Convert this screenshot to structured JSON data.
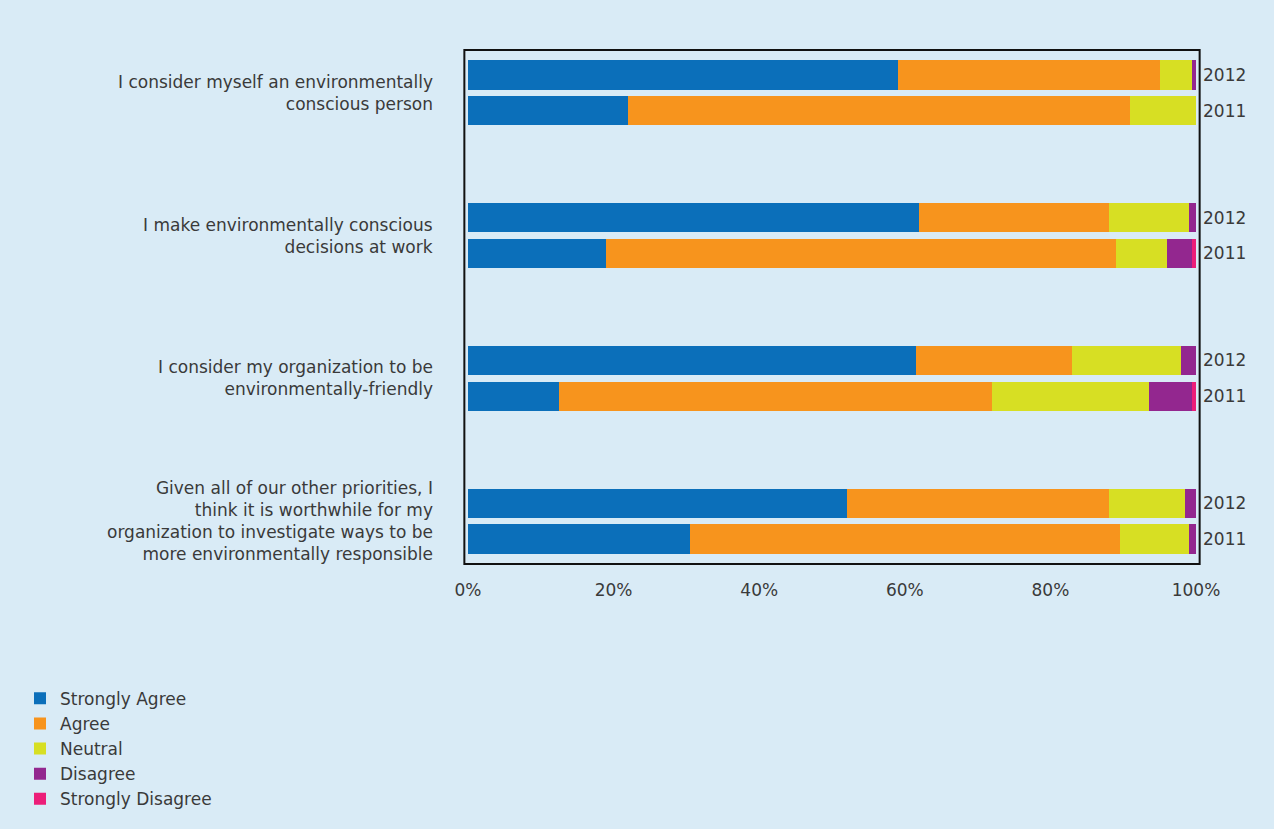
{
  "chart_data": {
    "type": "bar",
    "orientation": "horizontal",
    "stacked": true,
    "legend": "bottom left",
    "grid": false,
    "category_groups": [
      "I consider myself an environmentally conscious person",
      "I make environmentally conscious decisions at work",
      "I consider my organization to be environmentally-friendly",
      "Given all of our other priorities, I think it is worthwhile for my organization to investigate ways to be more environmentally responsible"
    ],
    "categories": [
      "2012",
      "2011",
      "2012",
      "2011",
      "2012",
      "2011",
      "2012",
      "2011"
    ],
    "xlim": [
      0,
      100
    ],
    "xticks": [
      {
        "value": 0,
        "label": "0%"
      },
      {
        "value": 20,
        "label": "20%"
      },
      {
        "value": 40,
        "label": "40%"
      },
      {
        "value": 60,
        "label": "60%"
      },
      {
        "value": 80,
        "label": "80%"
      },
      {
        "value": 100,
        "label": "100%"
      }
    ],
    "series": [
      {
        "name": "Strongly Agree",
        "color": "#0b6fba",
        "values": [
          59,
          22,
          62,
          19,
          61.5,
          12.5,
          52,
          30.5
        ]
      },
      {
        "name": "Agree",
        "color": "#f7941d",
        "values": [
          36,
          69,
          26,
          70,
          21.5,
          59.5,
          36,
          59
        ]
      },
      {
        "name": "Neutral",
        "color": "#d7df23",
        "values": [
          4.5,
          9,
          11,
          7,
          15,
          21.5,
          10.5,
          9.5
        ]
      },
      {
        "name": "Disagree",
        "color": "#93278f",
        "values": [
          0.5,
          0,
          1,
          3.5,
          2,
          6,
          1.5,
          1
        ]
      },
      {
        "name": "Strongly Disagree",
        "color": "#ec1e79",
        "values": [
          0,
          0,
          0,
          0.5,
          0,
          0.5,
          0,
          0
        ]
      }
    ]
  }
}
